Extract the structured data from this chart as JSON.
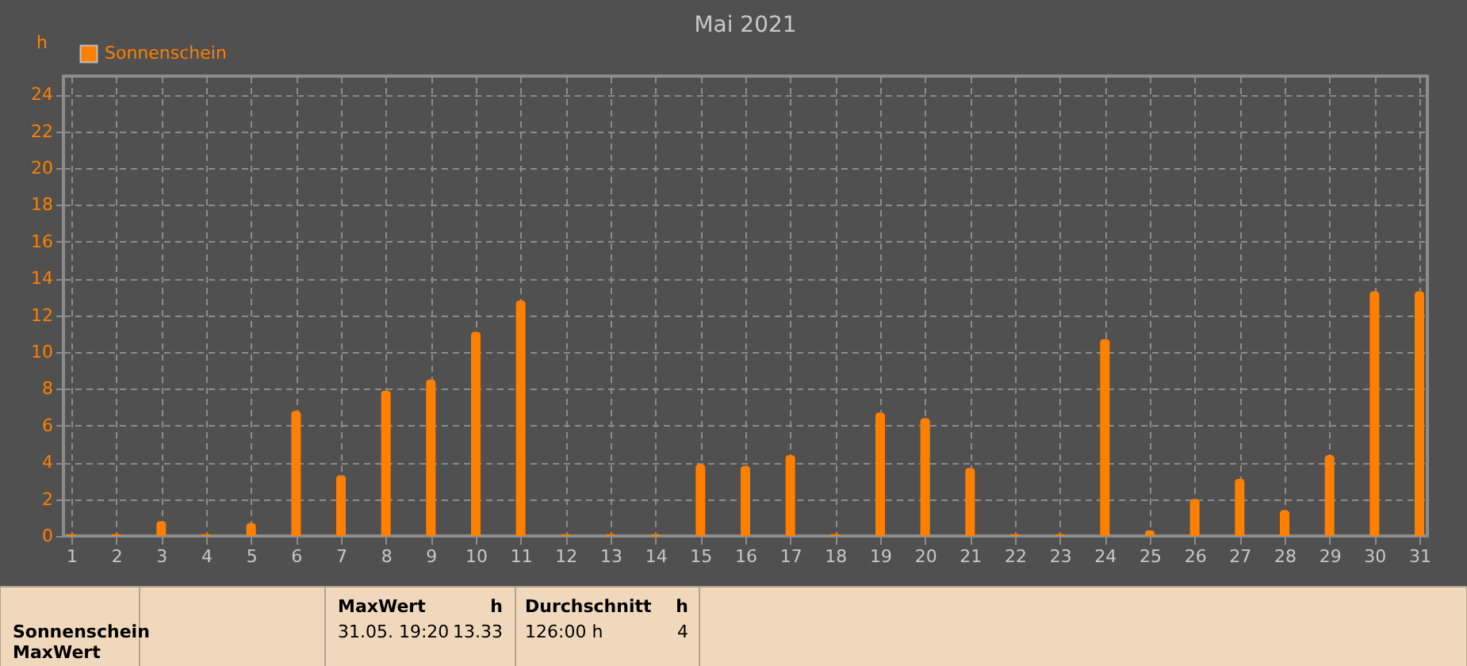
{
  "chart_data": {
    "type": "bar",
    "title": "Mai 2021",
    "ylabel": "h",
    "x": [
      1,
      2,
      3,
      4,
      5,
      6,
      7,
      8,
      9,
      10,
      11,
      12,
      13,
      14,
      15,
      16,
      17,
      18,
      19,
      20,
      21,
      22,
      23,
      24,
      25,
      26,
      27,
      28,
      29,
      30,
      31
    ],
    "series": [
      {
        "name": "Sonnenschein",
        "color": "#ff8000",
        "values": [
          0.1,
          0.1,
          0.8,
          0.1,
          0.7,
          6.8,
          3.3,
          7.9,
          8.5,
          11.1,
          12.8,
          0.1,
          0.1,
          0.1,
          3.9,
          3.8,
          4.4,
          0.1,
          6.7,
          6.4,
          3.7,
          0.1,
          0.1,
          10.7,
          0.3,
          2.0,
          3.1,
          1.4,
          4.4,
          13.3,
          13.3
        ]
      }
    ],
    "xlim": [
      1,
      31
    ],
    "xticks": [
      1,
      2,
      3,
      4,
      5,
      6,
      7,
      8,
      9,
      10,
      11,
      12,
      13,
      14,
      15,
      16,
      17,
      18,
      19,
      20,
      21,
      22,
      23,
      24,
      25,
      26,
      27,
      28,
      29,
      30,
      31
    ],
    "ylim": [
      0,
      25
    ],
    "yticks": [
      0,
      2,
      4,
      6,
      8,
      10,
      12,
      14,
      16,
      18,
      20,
      22,
      24
    ],
    "grid": true,
    "legend": "top left",
    "annotations": [
      "Sonnenschein",
      "MaxWert",
      "MaxWert",
      "h",
      "31.05.  19:20",
      "13.33",
      "Durchschnitt",
      "h",
      "126:00 h",
      "4"
    ]
  }
}
